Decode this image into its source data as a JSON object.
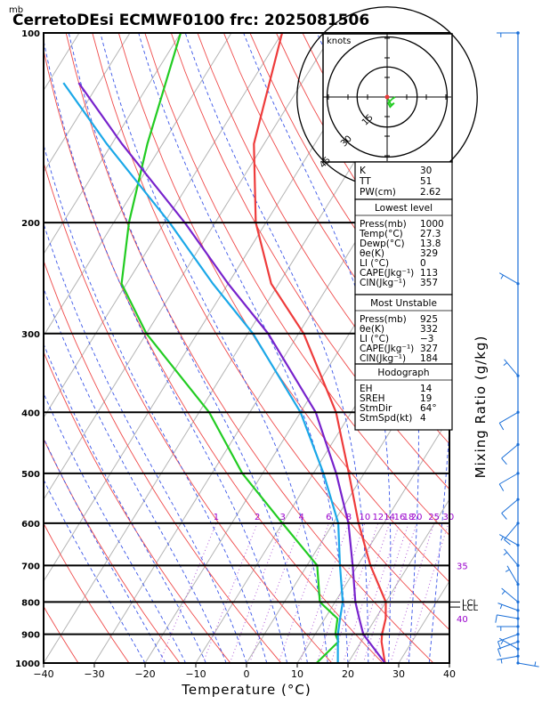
{
  "chart_data": {
    "type": "line",
    "title": "CerretoDEsi ECMWF0100  frc: 2025081506",
    "pressure_unit_label": "mb",
    "xlabel": "Temperature (°C)",
    "right_label": "Mixing Ratio (g/kg)",
    "xlim": [
      -40,
      40
    ],
    "ylim_hpa": [
      1000,
      100
    ],
    "y_scale": "log",
    "x_ticks": [
      "−40",
      "−30",
      "−20",
      "−10",
      "0",
      "10",
      "20",
      "30",
      "40"
    ],
    "x_tick_values": [
      -40,
      -30,
      -20,
      -10,
      0,
      10,
      20,
      30,
      40
    ],
    "pressure_levels": [
      {
        "p": 100,
        "label": "100"
      },
      {
        "p": 200,
        "label": "200"
      },
      {
        "p": 300,
        "label": "300"
      },
      {
        "p": 400,
        "label": "400"
      },
      {
        "p": 500,
        "label": "500"
      },
      {
        "p": 600,
        "label": "600"
      },
      {
        "p": 700,
        "label": "700"
      },
      {
        "p": 800,
        "label": "800"
      },
      {
        "p": 900,
        "label": "900"
      },
      {
        "p": 1000,
        "label": "1000"
      }
    ],
    "mixing_ratio_labels": [
      {
        "label": "1",
        "w": 1
      },
      {
        "label": "2",
        "w": 2
      },
      {
        "label": "3",
        "w": 3
      },
      {
        "label": "4",
        "w": 4
      },
      {
        "label": "6",
        "w": 6
      },
      {
        "label": "8",
        "w": 8
      },
      {
        "label": "10",
        "w": 10
      },
      {
        "label": "12",
        "w": 12
      },
      {
        "label": "14",
        "w": 14
      },
      {
        "label": "16",
        "w": 16
      },
      {
        "label": "18",
        "w": 18
      },
      {
        "label": "20",
        "w": 20
      },
      {
        "label": "25",
        "w": 25
      },
      {
        "label": "30",
        "w": 30
      }
    ],
    "right_edge_labels": [
      {
        "label": "35",
        "p": 700
      },
      {
        "label": "40",
        "p": 850
      }
    ],
    "series": [
      {
        "key": "temperature",
        "color": "#ee3b3b",
        "points": [
          {
            "p": 1000,
            "t": 27.3
          },
          {
            "p": 925,
            "t": 24.0
          },
          {
            "p": 900,
            "t": 23.2
          },
          {
            "p": 850,
            "t": 22.0
          },
          {
            "p": 800,
            "t": 20.0
          },
          {
            "p": 700,
            "t": 12.5
          },
          {
            "p": 600,
            "t": 5.0
          },
          {
            "p": 500,
            "t": -3.0
          },
          {
            "p": 400,
            "t": -13.0
          },
          {
            "p": 300,
            "t": -29.0
          },
          {
            "p": 250,
            "t": -41.5
          },
          {
            "p": 200,
            "t": -52.0
          },
          {
            "p": 150,
            "t": -62.0
          },
          {
            "p": 100,
            "t": -70.0
          }
        ]
      },
      {
        "key": "dewpoint",
        "color": "#22cc22",
        "points": [
          {
            "p": 1000,
            "t": 13.8
          },
          {
            "p": 925,
            "t": 15.5
          },
          {
            "p": 900,
            "t": 14.0
          },
          {
            "p": 850,
            "t": 12.5
          },
          {
            "p": 800,
            "t": 7.0
          },
          {
            "p": 700,
            "t": 2.0
          },
          {
            "p": 600,
            "t": -10.0
          },
          {
            "p": 500,
            "t": -24.0
          },
          {
            "p": 400,
            "t": -38.0
          },
          {
            "p": 300,
            "t": -60.0
          },
          {
            "p": 250,
            "t": -71.0
          },
          {
            "p": 200,
            "t": -77.0
          },
          {
            "p": 150,
            "t": -83.0
          },
          {
            "p": 100,
            "t": -90.0
          }
        ]
      },
      {
        "key": "parcel",
        "color": "#7722cc",
        "points": [
          {
            "p": 1000,
            "t": 27.3
          },
          {
            "p": 900,
            "t": 19.5
          },
          {
            "p": 850,
            "t": 16.8
          },
          {
            "p": 800,
            "t": 14.0
          },
          {
            "p": 700,
            "t": 9.0
          },
          {
            "p": 600,
            "t": 3.0
          },
          {
            "p": 500,
            "t": -5.5
          },
          {
            "p": 400,
            "t": -17.0
          },
          {
            "p": 300,
            "t": -36.0
          },
          {
            "p": 250,
            "t": -50.0
          },
          {
            "p": 200,
            "t": -66.0
          },
          {
            "p": 150,
            "t": -88.0
          },
          {
            "p": 120,
            "t": -104.0
          }
        ]
      },
      {
        "key": "wetbulb",
        "color": "#1aa8e8",
        "points": [
          {
            "p": 1000,
            "t": 18.0
          },
          {
            "p": 900,
            "t": 14.5
          },
          {
            "p": 850,
            "t": 13.0
          },
          {
            "p": 800,
            "t": 11.5
          },
          {
            "p": 700,
            "t": 6.5
          },
          {
            "p": 600,
            "t": 1.0
          },
          {
            "p": 500,
            "t": -8.0
          },
          {
            "p": 400,
            "t": -20.0
          },
          {
            "p": 300,
            "t": -39.0
          },
          {
            "p": 250,
            "t": -53.0
          },
          {
            "p": 200,
            "t": -69.0
          },
          {
            "p": 150,
            "t": -91.0
          },
          {
            "p": 120,
            "t": -107.0
          }
        ]
      }
    ],
    "lcl_labels": [
      {
        "label": "LCL",
        "p": 800
      },
      {
        "label": "LCL",
        "p": 815
      }
    ],
    "hodograph": {
      "units_label": "knots",
      "rings": [
        {
          "speed": 15,
          "label": "15"
        },
        {
          "speed": 30,
          "label": "30"
        },
        {
          "speed": 45,
          "label": "45"
        }
      ],
      "trace_u": [
        0.0,
        1.0,
        2.0,
        3.5,
        1.5,
        0.5,
        2.5,
        4.0
      ],
      "trace_v": [
        0.0,
        -2.0,
        -4.0,
        -3.0,
        -5.0,
        -3.0,
        -1.0,
        0.0
      ]
    },
    "indices_top": [
      {
        "label": "K",
        "value": "30"
      },
      {
        "label": "TT",
        "value": "51"
      },
      {
        "label": "PW(cm)",
        "value": "2.62"
      }
    ],
    "lowest_level": {
      "header": "Lowest level",
      "rows": [
        {
          "label": "Press(mb)",
          "value": "1000"
        },
        {
          "label": "Temp(°C)",
          "value": "27.3"
        },
        {
          "label": "Dewp(°C)",
          "value": "13.8"
        },
        {
          "label": "θe(K)",
          "value": "329"
        },
        {
          "label": "LI (°C)",
          "value": "0"
        },
        {
          "label": "CAPE(Jkg⁻¹)",
          "value": "113"
        },
        {
          "label": "CIN(Jkg⁻¹)",
          "value": "357"
        }
      ]
    },
    "most_unstable": {
      "header": "Most Unstable",
      "rows": [
        {
          "label": "Press(mb)",
          "value": "925"
        },
        {
          "label": "θe(K)",
          "value": "332"
        },
        {
          "label": "LI (°C)",
          "value": "−3"
        },
        {
          "label": "CAPE(Jkg⁻¹)",
          "value": "327"
        },
        {
          "label": "CIN(Jkg⁻¹)",
          "value": "184"
        }
      ]
    },
    "hodograph_table": {
      "header": "Hodograph",
      "rows": [
        {
          "label": "EH",
          "value": "14"
        },
        {
          "label": "SREH",
          "value": "19"
        },
        {
          "label": "StmDir",
          "value": "64°"
        },
        {
          "label": "StmSpd(kt)",
          "value": "4"
        }
      ]
    },
    "wind_barbs": [
      {
        "p": 1000,
        "dir": 100,
        "spd": 5
      },
      {
        "p": 975,
        "dir": 260,
        "spd": 5
      },
      {
        "p": 950,
        "dir": 300,
        "spd": 5
      },
      {
        "p": 925,
        "dir": 250,
        "spd": 10
      },
      {
        "p": 900,
        "dir": 250,
        "spd": 10
      },
      {
        "p": 875,
        "dir": 270,
        "spd": 5
      },
      {
        "p": 850,
        "dir": 280,
        "spd": 10
      },
      {
        "p": 825,
        "dir": 290,
        "spd": 5
      },
      {
        "p": 800,
        "dir": 310,
        "spd": 5
      },
      {
        "p": 750,
        "dir": 330,
        "spd": 5
      },
      {
        "p": 700,
        "dir": 320,
        "spd": 5
      },
      {
        "p": 650,
        "dir": 300,
        "spd": 5
      },
      {
        "p": 600,
        "dir": 220,
        "spd": 10
      },
      {
        "p": 550,
        "dir": 230,
        "spd": 10
      },
      {
        "p": 500,
        "dir": 240,
        "spd": 10
      },
      {
        "p": 450,
        "dir": 230,
        "spd": 10
      },
      {
        "p": 400,
        "dir": 240,
        "spd": 10
      },
      {
        "p": 350,
        "dir": 320,
        "spd": 5
      },
      {
        "p": 250,
        "dir": 300,
        "spd": 5
      },
      {
        "p": 100,
        "dir": 270,
        "spd": 5
      }
    ],
    "grid": true,
    "legend": "none"
  }
}
